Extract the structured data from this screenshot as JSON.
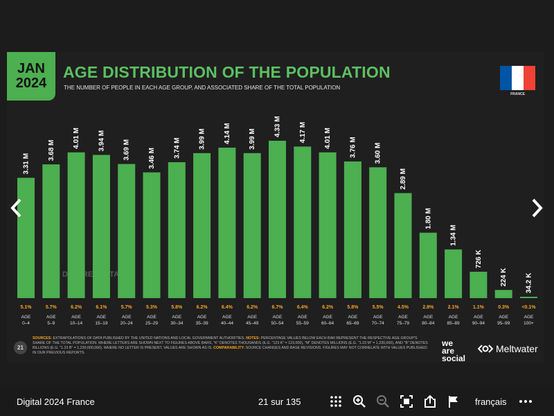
{
  "slide": {
    "date_month": "JAN",
    "date_year": "2024",
    "title": "AGE DISTRIBUTION OF THE POPULATION",
    "subtitle": "THE NUMBER OF PEOPLE IN EACH AGE GROUP, AND ASSOCIATED SHARE OF THE TOTAL POPULATION",
    "country": "FRANCE",
    "watermark": "DATAREPORTAL",
    "page_number": "21",
    "sources_label": "SOURCES:",
    "sources_text": "EXTRAPOLATIONS OF DATA PUBLISHED BY THE UNITED NATIONS AND LOCAL GOVERNMENT AUTHORITIES.",
    "notes_label": "NOTES:",
    "notes_text": "PERCENTAGE VALUES BELOW EACH BAR REPRESENT THE RESPECTIVE AGE GROUP'S SHARE OF THE TOTAL POPULATION. WHERE LETTERS ARE SHOWN NEXT TO FIGURES ABOVE BARS, \"K\" DENOTES THOUSANDS (E.G. \"123 K\" = 123,000), \"M\" DENOTES MILLIONS (E.G. \"1.23 M\" = 1,230,000), AND \"B\" DENOTES BILLIONS (E.G. \"1.23 B\" = 1,230,000,000). WHERE NO LETTER IS PRESENT, VALUES ARE SHOWN AS IS.",
    "comparability_label": "COMPARABILITY:",
    "comparability_text": "SOURCE CHANGES AND BASE REVISIONS. FIGURES MAY NOT CORRELATE WITH VALUES PUBLISHED IN OUR PREVIOUS REPORTS.",
    "brand_we": "we",
    "brand_are": "are",
    "brand_social": "social",
    "brand_meltwater": "Meltwater"
  },
  "chart_data": {
    "type": "bar",
    "categories": [
      "AGE 0–4",
      "AGE 5–9",
      "AGE 10–14",
      "AGE 15–19",
      "AGE 20–24",
      "AGE 25–29",
      "AGE 30–34",
      "AGE 35–39",
      "AGE 40–44",
      "AGE 45–49",
      "AGE 50–54",
      "AGE 55–59",
      "AGE 60–64",
      "AGE 65–69",
      "AGE 70–74",
      "AGE 75–79",
      "AGE 80–84",
      "AGE 85–89",
      "AGE 90–94",
      "AGE 95–99",
      "AGE 100+"
    ],
    "values": [
      3310000,
      3680000,
      4010000,
      3940000,
      3690000,
      3460000,
      3740000,
      3990000,
      4140000,
      3990000,
      4330000,
      4170000,
      4010000,
      3760000,
      3600000,
      2890000,
      1800000,
      1340000,
      726000,
      224000,
      34200
    ],
    "value_labels": [
      "3.31 M",
      "3.68 M",
      "4.01 M",
      "3.94 M",
      "3.69 M",
      "3.46 M",
      "3.74 M",
      "3.99 M",
      "4.14 M",
      "3.99 M",
      "4.33 M",
      "4.17 M",
      "4.01 M",
      "3.76 M",
      "3.60 M",
      "2.89 M",
      "1.80 M",
      "1.34 M",
      "726 K",
      "224 K",
      "34.2 K"
    ],
    "shares": [
      "5.1%",
      "5.7%",
      "6.2%",
      "6.1%",
      "5.7%",
      "5.3%",
      "5.8%",
      "6.2%",
      "6.4%",
      "6.2%",
      "6.7%",
      "6.4%",
      "6.2%",
      "5.8%",
      "5.5%",
      "4.5%",
      "2.8%",
      "2.1%",
      "1.1%",
      "0.3%",
      "<0.1%"
    ],
    "ylim": [
      0,
      4330000
    ],
    "bar_color": "#4caf50",
    "share_color": "#f5a623",
    "title": "AGE DISTRIBUTION OF THE POPULATION"
  },
  "viewer": {
    "doc_title": "Digital 2024 France",
    "page_indicator": "21 sur 135",
    "language": "français",
    "icons": [
      "grid-icon",
      "zoom-in-icon",
      "zoom-out-icon",
      "fullscreen-icon",
      "share-icon",
      "flag-icon",
      "more-icon"
    ]
  },
  "colors": {
    "accent": "#4caf50",
    "title_green": "#5cc062",
    "flag_blue": "#0055a4",
    "flag_white": "#ffffff",
    "flag_red": "#ef4135"
  }
}
